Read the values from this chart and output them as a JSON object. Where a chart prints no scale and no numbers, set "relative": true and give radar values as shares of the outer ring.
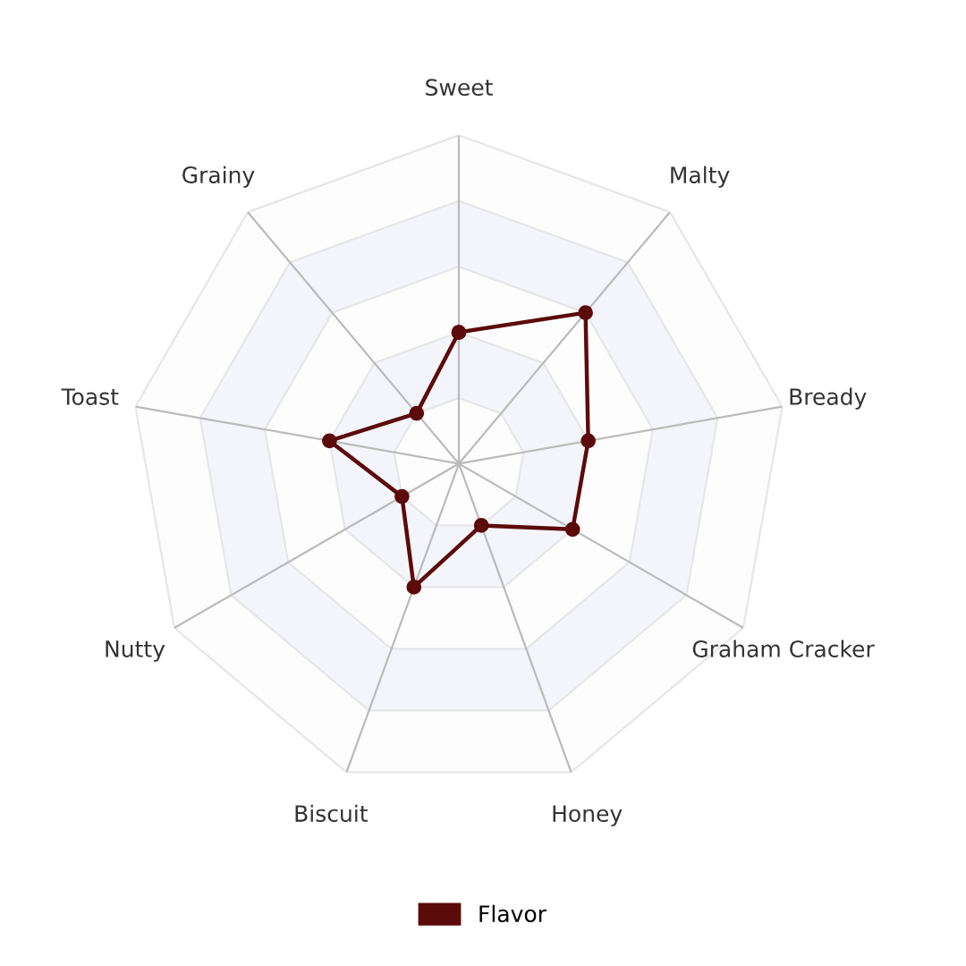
{
  "chart_data": {
    "type": "radar",
    "relative": true,
    "categories": [
      "Sweet",
      "Malty",
      "Bready",
      "Graham Cracker",
      "Honey",
      "Biscuit",
      "Nutty",
      "Toast",
      "Grainy"
    ],
    "series": [
      {
        "name": "Flavor",
        "color": "#5c0a0a",
        "values": [
          0.4,
          0.6,
          0.4,
          0.4,
          0.2,
          0.4,
          0.2,
          0.4,
          0.2
        ]
      }
    ],
    "marker": "circle",
    "line_style": "solid",
    "legend": "bottom",
    "grid": true
  }
}
